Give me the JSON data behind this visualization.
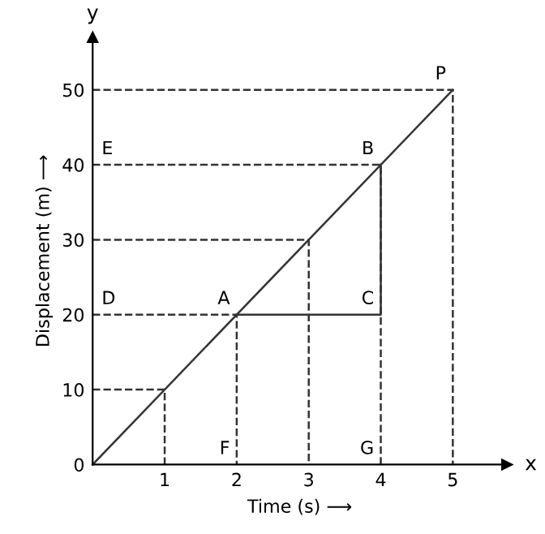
{
  "chart_data": {
    "type": "line",
    "xlabel": "Time (s) ⟶",
    "ylabel": "Displacement (m) ⟶",
    "xlim": [
      0,
      5.75
    ],
    "ylim": [
      0,
      57
    ],
    "xticks": [
      {
        "value": 0,
        "label": null
      },
      1,
      2,
      3,
      4,
      5
    ],
    "yticks": [
      0,
      10,
      20,
      30,
      40,
      50
    ],
    "grid": false,
    "marker": "none",
    "series": [
      {
        "color": "#333333",
        "line_style": "solid",
        "x": [
          0,
          5
        ],
        "values": [
          0,
          50
        ]
      },
      {
        "color": "#333333",
        "line_style": "solid",
        "x": [
          2,
          4,
          4
        ],
        "values": [
          20,
          20,
          40
        ]
      },
      {
        "color": "#333333",
        "line_style": "dashed",
        "x": [
          0,
          1,
          1
        ],
        "values": [
          10,
          10,
          0
        ]
      },
      {
        "color": "#333333",
        "line_style": "dashed",
        "x": [
          0,
          2,
          2
        ],
        "values": [
          20,
          20,
          0
        ]
      },
      {
        "color": "#333333",
        "line_style": "dashed",
        "x": [
          0,
          3,
          3
        ],
        "values": [
          30,
          30,
          0
        ]
      },
      {
        "color": "#333333",
        "line_style": "dashed",
        "x": [
          0,
          4,
          4
        ],
        "values": [
          40,
          40,
          0
        ]
      },
      {
        "color": "#333333",
        "line_style": "dashed",
        "x": [
          0,
          5,
          5
        ],
        "values": [
          50,
          50,
          0
        ]
      }
    ],
    "annotations": [
      "x",
      "y",
      {
        "text": "P",
        "x": 5,
        "y": 50
      },
      {
        "text": "B",
        "x": 4,
        "y": 40
      },
      {
        "text": "A",
        "x": 2,
        "y": 20
      },
      {
        "text": "C",
        "x": 4,
        "y": 20
      },
      {
        "text": "E",
        "x": 0,
        "y": 40
      },
      {
        "text": "D",
        "x": 0,
        "y": 20
      },
      {
        "text": "F",
        "x": 2,
        "y": 0
      },
      {
        "text": "G",
        "x": 4,
        "y": 0
      }
    ]
  }
}
